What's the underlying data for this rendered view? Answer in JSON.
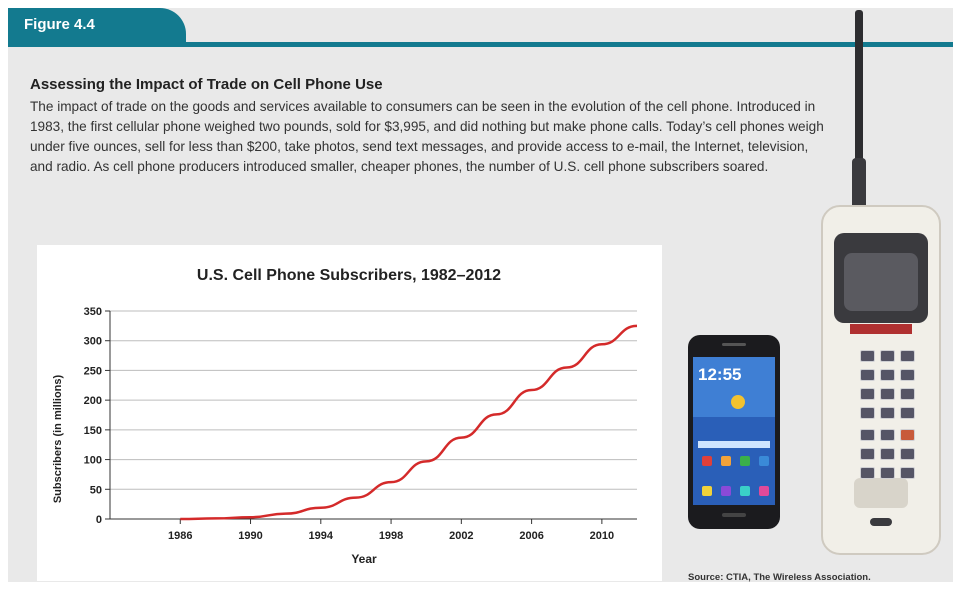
{
  "figure_label": "Figure 4.4",
  "heading": "Assessing the Impact of Trade on Cell Phone Use",
  "body_text": "The impact of trade on the goods and services available to consumers can be seen in the evolution of the cell phone. Introduced in 1983, the first cellular phone weighed two pounds, sold for $3,995, and did nothing but make phone calls. Today’s cell phones weigh under five ounces, sell for less than $200, take photos, send text messages, and provide access to e-mail, the Internet, television, and radio. As cell phone producers introduced smaller, cheaper phones, the number of U.S. cell phone subscribers soared.",
  "source": "Source: CTIA, The Wireless Association.",
  "smartphone_clock": "12:55",
  "chart_data": {
    "type": "line",
    "title": "U.S. Cell Phone Subscribers, 1982–2012",
    "xlabel": "Year",
    "ylabel": "Subscribers (in millions)",
    "xlim": [
      1982,
      2012
    ],
    "ylim": [
      0,
      350
    ],
    "x_ticks": [
      1986,
      1990,
      1994,
      1998,
      2002,
      2006,
      2010
    ],
    "y_ticks": [
      0,
      50,
      100,
      150,
      200,
      250,
      300,
      350
    ],
    "grid": true,
    "series": [
      {
        "color": "#d42a2a",
        "x": [
          1986,
          1988,
          1990,
          1992,
          1994,
          1996,
          1998,
          2000,
          2002,
          2004,
          2006,
          2008,
          2010,
          2012
        ],
        "y": [
          0,
          1,
          3,
          9,
          19,
          36,
          62,
          97,
          137,
          176,
          217,
          255,
          294,
          325
        ]
      }
    ]
  }
}
